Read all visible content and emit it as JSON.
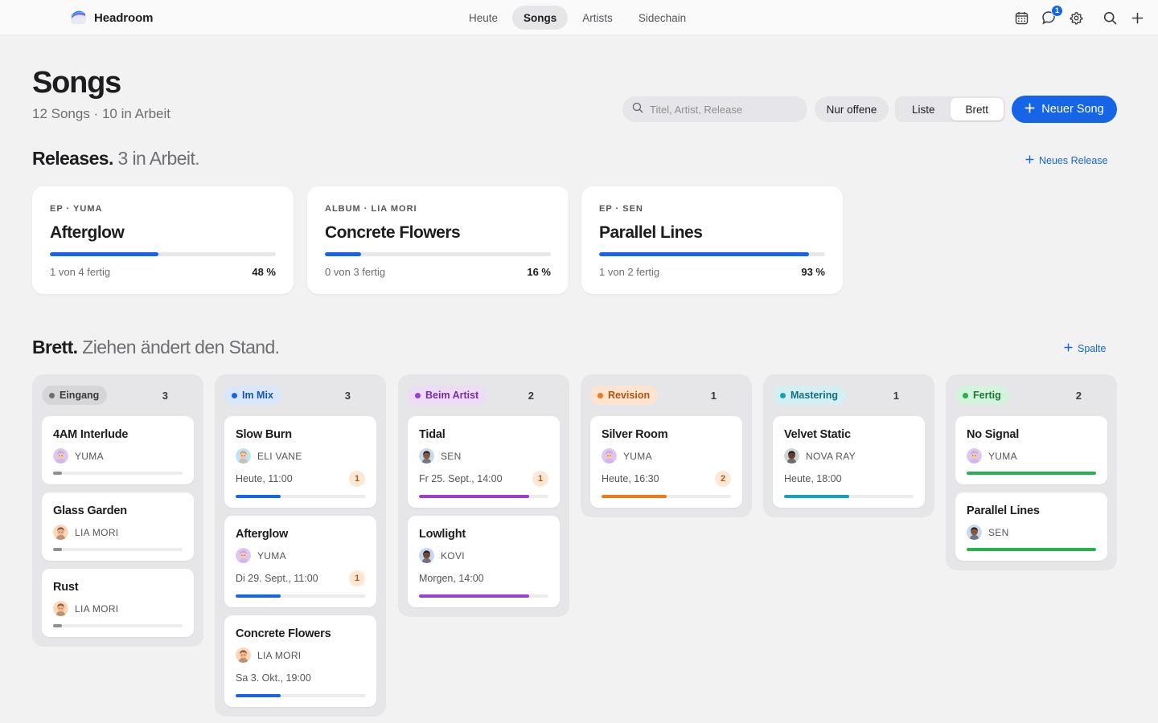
{
  "app": {
    "name": "Headroom"
  },
  "nav": {
    "items": [
      {
        "label": "Heute",
        "active": false
      },
      {
        "label": "Songs",
        "active": true
      },
      {
        "label": "Artists",
        "active": false
      },
      {
        "label": "Sidechain",
        "active": false
      }
    ]
  },
  "toolbar_icons": {
    "calendar": "calendar-icon",
    "messages": "chat-icon",
    "messages_badge": "1",
    "settings": "gear-icon",
    "search": "search-icon",
    "add": "plus-icon"
  },
  "header": {
    "title": "Songs",
    "subtitle": "12 Songs · 10 in Arbeit",
    "search_placeholder": "Titel, Artist, Release",
    "filter_label": "Nur offene",
    "view_toggle": [
      {
        "label": "Liste",
        "active": false
      },
      {
        "label": "Brett",
        "active": true
      }
    ],
    "new_song_label": "Neuer Song"
  },
  "releases": {
    "title": "Releases.",
    "title_muted": "3 in Arbeit.",
    "new_label": "Neues Release",
    "items": [
      {
        "eyebrow": "EP · YUMA",
        "title": "Afterglow",
        "status": "1 von 4 fertig",
        "percent_label": "48 %",
        "progress": 0.48
      },
      {
        "eyebrow": "ALBUM · LIA MORI",
        "title": "Concrete Flowers",
        "status": "0 von 3 fertig",
        "percent_label": "16 %",
        "progress": 0.16
      },
      {
        "eyebrow": "EP · SEN",
        "title": "Parallel Lines",
        "status": "1 von 2 fertig",
        "percent_label": "93 %",
        "progress": 0.93
      }
    ]
  },
  "board": {
    "title": "Brett.",
    "title_muted": "Ziehen ändert den Stand.",
    "add_column_label": "Spalte",
    "columns": [
      {
        "label": "Eingang",
        "count": "3",
        "pill_bg": "#d6d6d9",
        "pill_fg": "#3a3a3c",
        "dot": "#6e6e73",
        "cards": [
          {
            "title": "4AM Interlude",
            "artist": "YUMA",
            "avatar": "yuma",
            "date": "",
            "badge": "",
            "progress": 0.07,
            "bar_color": "#8e8e93"
          },
          {
            "title": "Glass Garden",
            "artist": "LIA MORI",
            "avatar": "lia",
            "date": "",
            "badge": "",
            "progress": 0.07,
            "bar_color": "#8e8e93"
          },
          {
            "title": "Rust",
            "artist": "LIA MORI",
            "avatar": "lia",
            "date": "",
            "badge": "",
            "progress": 0.07,
            "bar_color": "#8e8e93"
          }
        ]
      },
      {
        "label": "Im Mix",
        "count": "3",
        "pill_bg": "#d9e6fb",
        "pill_fg": "#1553c4",
        "dot": "#1565e6",
        "cards": [
          {
            "title": "Slow Burn",
            "artist": "ELI VANE",
            "avatar": "eli",
            "date": "Heute, 11:00",
            "badge": "1",
            "progress": 0.35,
            "bar_color": "#1565e6"
          },
          {
            "title": "Afterglow",
            "artist": "YUMA",
            "avatar": "yuma",
            "date": "Di 29. Sept., 11:00",
            "badge": "1",
            "progress": 0.35,
            "bar_color": "#1565e6"
          },
          {
            "title": "Concrete Flowers",
            "artist": "LIA MORI",
            "avatar": "lia",
            "date": "Sa 3. Okt., 19:00",
            "badge": "",
            "progress": 0.35,
            "bar_color": "#1565e6"
          }
        ]
      },
      {
        "label": "Beim Artist",
        "count": "2",
        "pill_bg": "#eddcf6",
        "pill_fg": "#7a2ca8",
        "dot": "#9b3fd1",
        "cards": [
          {
            "title": "Tidal",
            "artist": "SEN",
            "avatar": "sen",
            "date": "Fr 25. Sept., 14:00",
            "badge": "1",
            "progress": 0.85,
            "bar_color": "#9b3fd1"
          },
          {
            "title": "Lowlight",
            "artist": "KOVI",
            "avatar": "kovi",
            "date": "Morgen, 14:00",
            "badge": "",
            "progress": 0.85,
            "bar_color": "#9b3fd1"
          }
        ]
      },
      {
        "label": "Revision",
        "count": "1",
        "pill_bg": "#fde4d0",
        "pill_fg": "#b4530f",
        "dot": "#f07a1a",
        "cards": [
          {
            "title": "Silver Room",
            "artist": "YUMA",
            "avatar": "yuma",
            "date": "Heute, 16:30",
            "badge": "2",
            "progress": 0.5,
            "bar_color": "#f07a1a"
          }
        ]
      },
      {
        "label": "Mastering",
        "count": "1",
        "pill_bg": "#d4eff2",
        "pill_fg": "#0f7282",
        "dot": "#16a2b5",
        "cards": [
          {
            "title": "Velvet Static",
            "artist": "NOVA RAY",
            "avatar": "nova",
            "date": "Heute, 18:00",
            "badge": "",
            "progress": 0.5,
            "bar_color": "#16a2b5"
          }
        ]
      },
      {
        "label": "Fertig",
        "count": "2",
        "pill_bg": "#d5f2dd",
        "pill_fg": "#177a34",
        "dot": "#22b34a",
        "cards": [
          {
            "title": "No Signal",
            "artist": "YUMA",
            "avatar": "yuma",
            "date": "",
            "badge": "",
            "progress": 1.0,
            "bar_color": "#22b34a"
          },
          {
            "title": "Parallel Lines",
            "artist": "SEN",
            "avatar": "sen",
            "date": "",
            "badge": "",
            "progress": 1.0,
            "bar_color": "#22b34a"
          }
        ]
      }
    ]
  },
  "colors": {
    "accent": "#1565e6",
    "background": "#f2f2f3"
  }
}
